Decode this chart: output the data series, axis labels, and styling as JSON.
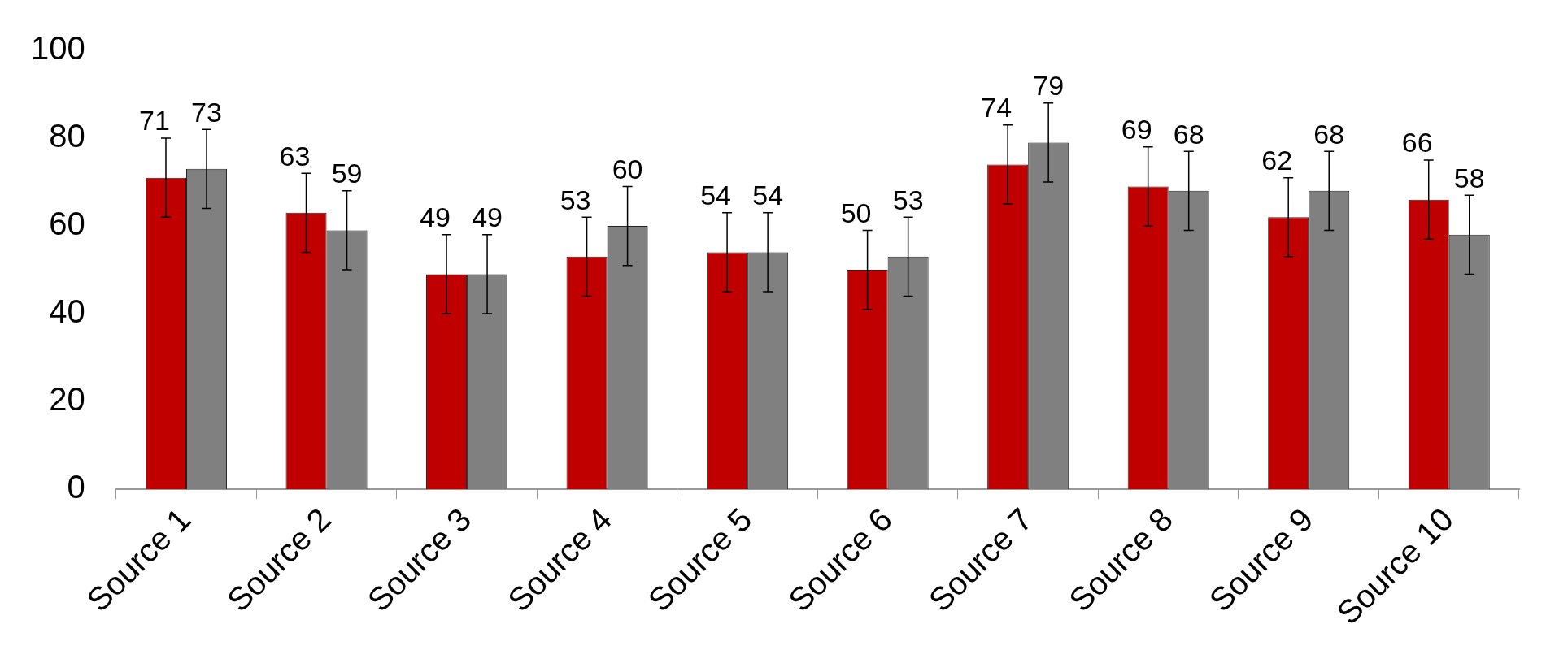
{
  "chart_data": {
    "type": "bar",
    "categories": [
      "Source 1",
      "Source 2",
      "Source 3",
      "Source 4",
      "Source 5",
      "Source 6",
      "Source 7",
      "Source 8",
      "Source 9",
      "Source 10"
    ],
    "series": [
      {
        "color": "#c00000",
        "values": [
          71,
          63,
          49,
          53,
          54,
          50,
          74,
          69,
          62,
          66
        ],
        "errors": [
          9,
          9,
          9,
          9,
          9,
          9,
          9,
          9,
          9,
          9
        ]
      },
      {
        "color": "#808080",
        "values": [
          73,
          59,
          49,
          60,
          54,
          53,
          79,
          68,
          68,
          58
        ],
        "errors": [
          9,
          9,
          9,
          9,
          9,
          9,
          9,
          9,
          9,
          9
        ]
      }
    ],
    "ylim": [
      0,
      100
    ],
    "yticks": [
      0,
      20,
      40,
      60,
      80,
      100
    ],
    "grid": false,
    "legend": false,
    "data_labels": true
  }
}
